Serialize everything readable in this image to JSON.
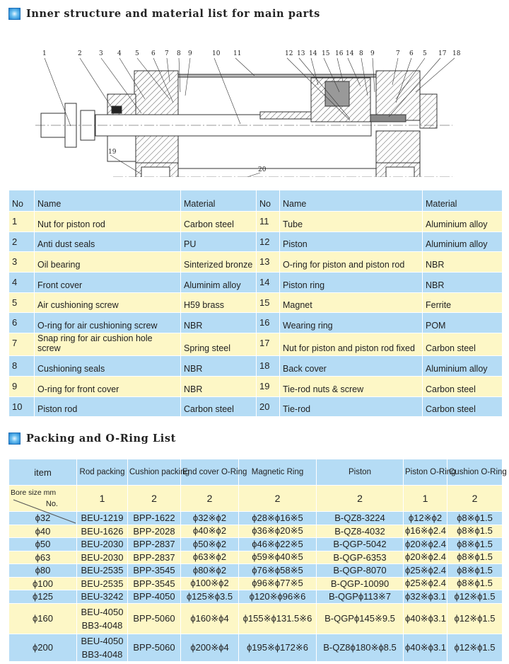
{
  "section1": {
    "title": "Inner structure and material list for main parts"
  },
  "diagram": {
    "callouts": [
      "1",
      "2",
      "3",
      "4",
      "5",
      "6",
      "7",
      "8",
      "9",
      "10",
      "11",
      "12",
      "13",
      "14",
      "15",
      "16",
      "14",
      "8",
      "9",
      "7",
      "6",
      "5",
      "17",
      "18",
      "19",
      "20"
    ]
  },
  "parts_table": {
    "headers": [
      "No",
      "Name",
      "Material",
      "No",
      "Name",
      "Material"
    ],
    "rows": [
      [
        {
          "no": "1",
          "name": "Nut for piston rod",
          "material": "Carbon steel"
        },
        {
          "no": "11",
          "name": "Tube",
          "material": "Aluminium alloy"
        }
      ],
      [
        {
          "no": "2",
          "name": "Anti dust seals",
          "material": "PU"
        },
        {
          "no": "12",
          "name": "Piston",
          "material": "Aluminium alloy"
        }
      ],
      [
        {
          "no": "3",
          "name": "Oil bearing",
          "material": "Sinterized bronze"
        },
        {
          "no": "13",
          "name": "O-ring for piston and piston rod",
          "material": "NBR"
        }
      ],
      [
        {
          "no": "4",
          "name": "Front cover",
          "material": "Aluminim alloy"
        },
        {
          "no": "14",
          "name": "Piston ring",
          "material": "NBR"
        }
      ],
      [
        {
          "no": "5",
          "name": "Air cushioning screw",
          "material": "H59 brass"
        },
        {
          "no": "15",
          "name": "Magnet",
          "material": "Ferrite"
        }
      ],
      [
        {
          "no": "6",
          "name": "O-ring for air cushioning screw",
          "material": "NBR"
        },
        {
          "no": "16",
          "name": "Wearing ring",
          "material": "POM"
        }
      ],
      [
        {
          "no": "7",
          "name": "Snap ring for air cushion hole screw",
          "material": "Spring steel"
        },
        {
          "no": "17",
          "name": "Nut for piston and piston rod fixed",
          "material": "Carbon steel"
        }
      ],
      [
        {
          "no": "8",
          "name": "Cushioning seals",
          "material": "NBR"
        },
        {
          "no": "18",
          "name": "Back cover",
          "material": "Aluminium alloy"
        }
      ],
      [
        {
          "no": "9",
          "name": "O-ring for front cover",
          "material": "NBR"
        },
        {
          "no": "19",
          "name": "Tie-rod nuts & screw",
          "material": "Carbon steel"
        }
      ],
      [
        {
          "no": "10",
          "name": "Piston rod",
          "material": "Carbon steel"
        },
        {
          "no": "20",
          "name": "Tie-rod",
          "material": "Carbon steel"
        }
      ]
    ]
  },
  "section2": {
    "title": "Packing and O-Ring List"
  },
  "packing_table": {
    "item_label": "item",
    "no_label": "No.",
    "bore_label": "Bore size mm",
    "columns": [
      "Rod packing",
      "Cushion packing",
      "End cover O-Ring",
      "Magnetic Ring",
      "Piston",
      "Piston O-Ring",
      "Cushion O-Ring"
    ],
    "quantities": [
      "1",
      "2",
      "2",
      "2",
      "2",
      "1",
      "2"
    ],
    "rows": [
      [
        "ϕ32",
        "BEU-1219",
        "BPP-1622",
        "ϕ32※ϕ2",
        "ϕ28※ϕ16※5",
        "B-QZ8-3224",
        "ϕ12※ϕ2",
        "ϕ8※ϕ1.5"
      ],
      [
        "ϕ40",
        "BEU-1626",
        "BPP-2028",
        "ϕ40※ϕ2",
        "ϕ36※ϕ20※5",
        "B-QZ8-4032",
        "ϕ16※ϕ2.4",
        "ϕ8※ϕ1.5"
      ],
      [
        "ϕ50",
        "BEU-2030",
        "BPP-2837",
        "ϕ50※ϕ2",
        "ϕ46※ϕ22※5",
        "B-QGP-5042",
        "ϕ20※ϕ2.4",
        "ϕ8※ϕ1.5"
      ],
      [
        "ϕ63",
        "BEU-2030",
        "BPP-2837",
        "ϕ63※ϕ2",
        "ϕ59※ϕ40※5",
        "B-QGP-6353",
        "ϕ20※ϕ2.4",
        "ϕ8※ϕ1.5"
      ],
      [
        "ϕ80",
        "BEU-2535",
        "BPP-3545",
        "ϕ80※ϕ2",
        "ϕ76※ϕ58※5",
        "B-QGP-8070",
        "ϕ25※ϕ2.4",
        "ϕ8※ϕ1.5"
      ],
      [
        "ϕ100",
        "BEU-2535",
        "BPP-3545",
        "ϕ100※ϕ2",
        "ϕ96※ϕ77※5",
        "B-QGP-10090",
        "ϕ25※ϕ2.4",
        "ϕ8※ϕ1.5"
      ],
      [
        "ϕ125",
        "BEU-3242",
        "BPP-4050",
        "ϕ125※ϕ3.5",
        "ϕ120※ϕ96※6",
        "B-QGPϕ113※7",
        "ϕ32※ϕ3.1",
        "ϕ12※ϕ1.5"
      ],
      [
        "ϕ160",
        [
          "BEU-4050",
          "BB3-4048"
        ],
        "BPP-5060",
        "ϕ160※ϕ4",
        "ϕ155※ϕ131.5※6",
        "B-QGPϕ145※9.5",
        "ϕ40※ϕ3.1",
        "ϕ12※ϕ1.5"
      ],
      [
        "ϕ200",
        [
          "BEU-4050",
          "BB3-4048"
        ],
        "BPP-5060",
        "ϕ200※ϕ4",
        "ϕ195※ϕ172※6",
        "B-QZ8ϕ180※ϕ8.5",
        "ϕ40※ϕ3.1",
        "ϕ12※ϕ1.5"
      ]
    ]
  },
  "colors": {
    "row_blue": "#b5dcf5",
    "row_yellow": "#fdf7c6",
    "icon_blue": "#1b7fd0"
  }
}
